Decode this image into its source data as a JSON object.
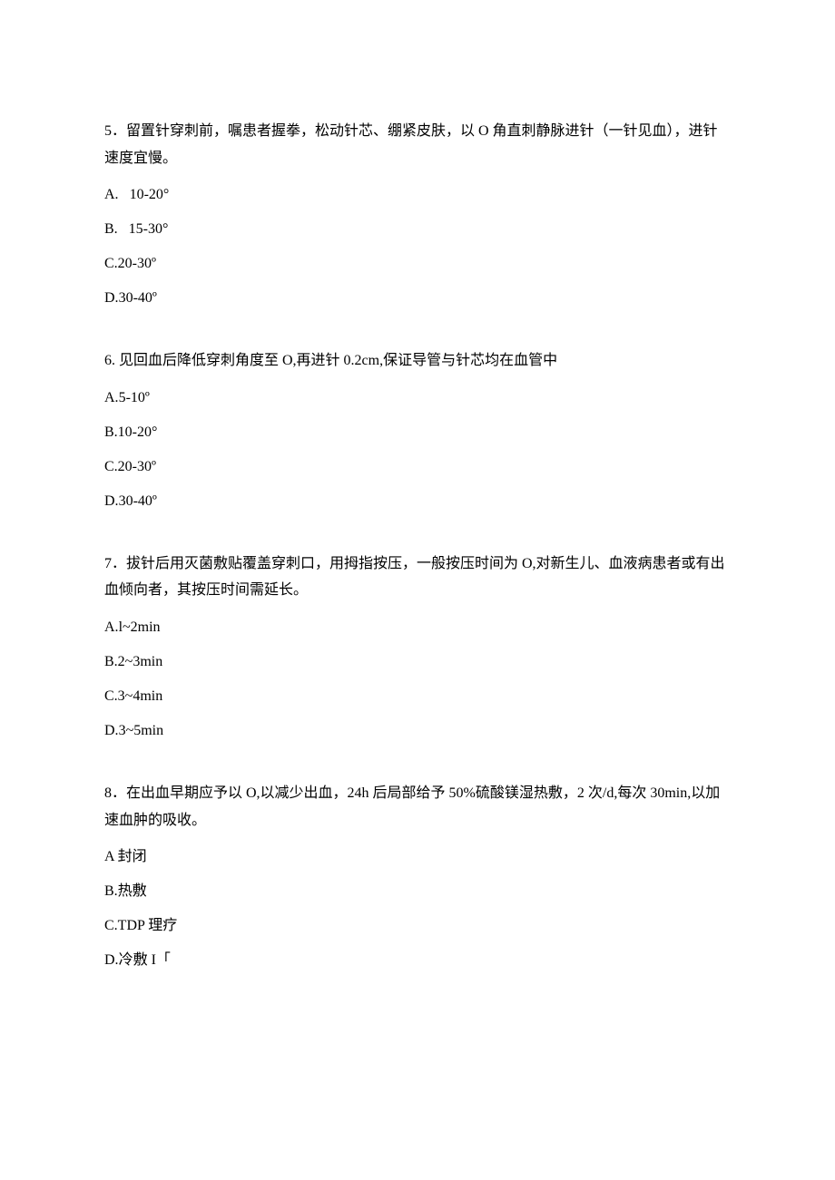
{
  "document": {
    "text_color": "#000000",
    "background_color": "#ffffff",
    "font_size": 16
  },
  "questions": [
    {
      "number": "5",
      "text": "．留置针穿刺前，嘱患者握拳，松动针芯、绷紧皮肤，以 O 角直刺静脉进针（一针见血），进针速度宜慢。",
      "options": [
        {
          "label": "A.",
          "value": "10-20°",
          "spaced": true
        },
        {
          "label": "B.",
          "value": "15-30°",
          "spaced": true
        },
        {
          "label": "C.",
          "value": "20-30º",
          "spaced": false
        },
        {
          "label": "D.",
          "value": "30-40º",
          "spaced": false
        }
      ]
    },
    {
      "number": "6.",
      "text": " 见回血后降低穿刺角度至 O,再进针 0.2cm,保证导管与针芯均在血管中",
      "options": [
        {
          "label": "A.",
          "value": "5-10º",
          "spaced": false
        },
        {
          "label": "B.",
          "value": "10-20°",
          "spaced": false
        },
        {
          "label": "C.",
          "value": "20-30º",
          "spaced": false
        },
        {
          "label": "D.",
          "value": "30-40º",
          "spaced": false
        }
      ]
    },
    {
      "number": "7",
      "text": "．拔针后用灭菌敷贴覆盖穿刺口，用拇指按压，一般按压时间为 O,对新生儿、血液病患者或有出血倾向者，其按压时间需延长。",
      "options": [
        {
          "label": "A.",
          "value": "l~2min",
          "spaced": false
        },
        {
          "label": "B.",
          "value": "2~3min",
          "spaced": false
        },
        {
          "label": "C.",
          "value": "3~4min",
          "spaced": false
        },
        {
          "label": "D.",
          "value": "3~5min",
          "spaced": false
        }
      ]
    },
    {
      "number": "8",
      "text": "．在出血早期应予以 O,以减少出血，24h 后局部给予 50%硫酸镁湿热敷，2 次/d,每次 30min,以加速血肿的吸收。",
      "options": [
        {
          "label": "A",
          "value": "封闭",
          "spaced": true
        },
        {
          "label": "B.",
          "value": "热敷",
          "spaced": false
        },
        {
          "label": "C.",
          "value": "TDP 理疗",
          "spaced": false
        },
        {
          "label": "D.",
          "value": "冷敷 I「",
          "spaced": false
        }
      ]
    }
  ]
}
